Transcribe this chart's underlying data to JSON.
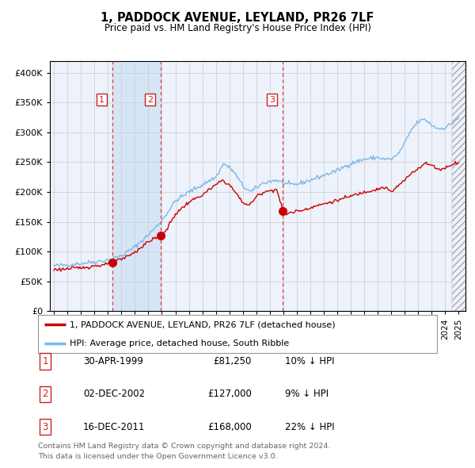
{
  "title": "1, PADDOCK AVENUE, LEYLAND, PR26 7LF",
  "subtitle": "Price paid vs. HM Land Registry's House Price Index (HPI)",
  "legend_line1": "1, PADDOCK AVENUE, LEYLAND, PR26 7LF (detached house)",
  "legend_line2": "HPI: Average price, detached house, South Ribble",
  "footer_line1": "Contains HM Land Registry data © Crown copyright and database right 2024.",
  "footer_line2": "This data is licensed under the Open Government Licence v3.0.",
  "sales": [
    {
      "num": 1,
      "date": "30-APR-1999",
      "price": 81250,
      "pct": "10%",
      "dir": "↓"
    },
    {
      "num": 2,
      "date": "02-DEC-2002",
      "price": 127000,
      "pct": "9%",
      "dir": "↓"
    },
    {
      "num": 3,
      "date": "16-DEC-2011",
      "price": 168000,
      "pct": "22%",
      "dir": "↓"
    }
  ],
  "sale_dates_decimal": [
    1999.33,
    2002.92,
    2011.96
  ],
  "sale_prices": [
    81250,
    127000,
    168000
  ],
  "hpi_color": "#7ab8e8",
  "price_color": "#cc0000",
  "background_color": "#edf2fb",
  "plot_bg": "#ffffff",
  "grid_color": "#cccccc",
  "shade_color": "#d5e5f5",
  "vline_color": "#dd3333",
  "label_color": "#cc2222",
  "ylim": [
    0,
    420000
  ],
  "yticks": [
    0,
    50000,
    100000,
    150000,
    200000,
    250000,
    300000,
    350000,
    400000
  ],
  "xlim_start": 1994.7,
  "xlim_end": 2025.5,
  "xtick_years": [
    1995,
    1996,
    1997,
    1998,
    1999,
    2000,
    2001,
    2002,
    2003,
    2004,
    2005,
    2006,
    2007,
    2008,
    2009,
    2010,
    2011,
    2012,
    2013,
    2014,
    2015,
    2016,
    2017,
    2018,
    2019,
    2020,
    2021,
    2022,
    2023,
    2024,
    2025
  ],
  "hpi_waypoints": [
    [
      1995.0,
      76000
    ],
    [
      1996.0,
      78000
    ],
    [
      1997.0,
      80000
    ],
    [
      1998.0,
      83000
    ],
    [
      1999.0,
      86000
    ],
    [
      2000.0,
      93000
    ],
    [
      2001.0,
      108000
    ],
    [
      2002.0,
      128000
    ],
    [
      2003.0,
      152000
    ],
    [
      2004.0,
      185000
    ],
    [
      2005.0,
      200000
    ],
    [
      2006.0,
      212000
    ],
    [
      2007.0,
      225000
    ],
    [
      2007.6,
      248000
    ],
    [
      2008.3,
      235000
    ],
    [
      2009.0,
      210000
    ],
    [
      2009.6,
      200000
    ],
    [
      2010.0,
      207000
    ],
    [
      2010.5,
      215000
    ],
    [
      2011.0,
      218000
    ],
    [
      2011.5,
      220000
    ],
    [
      2012.0,
      215000
    ],
    [
      2012.5,
      212000
    ],
    [
      2013.0,
      213000
    ],
    [
      2014.0,
      220000
    ],
    [
      2015.0,
      228000
    ],
    [
      2016.0,
      236000
    ],
    [
      2017.0,
      248000
    ],
    [
      2018.0,
      255000
    ],
    [
      2019.0,
      258000
    ],
    [
      2019.5,
      255000
    ],
    [
      2020.0,
      255000
    ],
    [
      2020.5,
      263000
    ],
    [
      2021.0,
      282000
    ],
    [
      2021.5,
      305000
    ],
    [
      2022.0,
      318000
    ],
    [
      2022.5,
      322000
    ],
    [
      2023.0,
      312000
    ],
    [
      2023.5,
      306000
    ],
    [
      2024.0,
      308000
    ],
    [
      2024.5,
      315000
    ],
    [
      2025.0,
      325000
    ]
  ],
  "price_waypoints": [
    [
      1995.0,
      70000
    ],
    [
      1996.0,
      71000
    ],
    [
      1997.0,
      73000
    ],
    [
      1998.0,
      76000
    ],
    [
      1999.0,
      78500
    ],
    [
      1999.33,
      81250
    ],
    [
      2000.0,
      87000
    ],
    [
      2001.0,
      99000
    ],
    [
      2002.0,
      117000
    ],
    [
      2002.92,
      127000
    ],
    [
      2003.3,
      135000
    ],
    [
      2004.0,
      163000
    ],
    [
      2005.0,
      183000
    ],
    [
      2006.0,
      195000
    ],
    [
      2007.0,
      212000
    ],
    [
      2007.5,
      220000
    ],
    [
      2008.0,
      212000
    ],
    [
      2008.5,
      198000
    ],
    [
      2009.0,
      182000
    ],
    [
      2009.5,
      178000
    ],
    [
      2010.0,
      192000
    ],
    [
      2010.5,
      200000
    ],
    [
      2011.0,
      202000
    ],
    [
      2011.5,
      205000
    ],
    [
      2011.96,
      168000
    ],
    [
      2012.1,
      162000
    ],
    [
      2012.5,
      165000
    ],
    [
      2013.0,
      168000
    ],
    [
      2013.5,
      170000
    ],
    [
      2014.0,
      174000
    ],
    [
      2015.0,
      180000
    ],
    [
      2016.0,
      186000
    ],
    [
      2017.0,
      193000
    ],
    [
      2018.0,
      200000
    ],
    [
      2019.0,
      205000
    ],
    [
      2019.5,
      208000
    ],
    [
      2020.0,
      200000
    ],
    [
      2020.5,
      210000
    ],
    [
      2021.0,
      220000
    ],
    [
      2021.5,
      232000
    ],
    [
      2022.0,
      240000
    ],
    [
      2022.5,
      248000
    ],
    [
      2023.0,
      245000
    ],
    [
      2023.5,
      238000
    ],
    [
      2024.0,
      240000
    ],
    [
      2024.5,
      247000
    ],
    [
      2025.0,
      250000
    ]
  ]
}
